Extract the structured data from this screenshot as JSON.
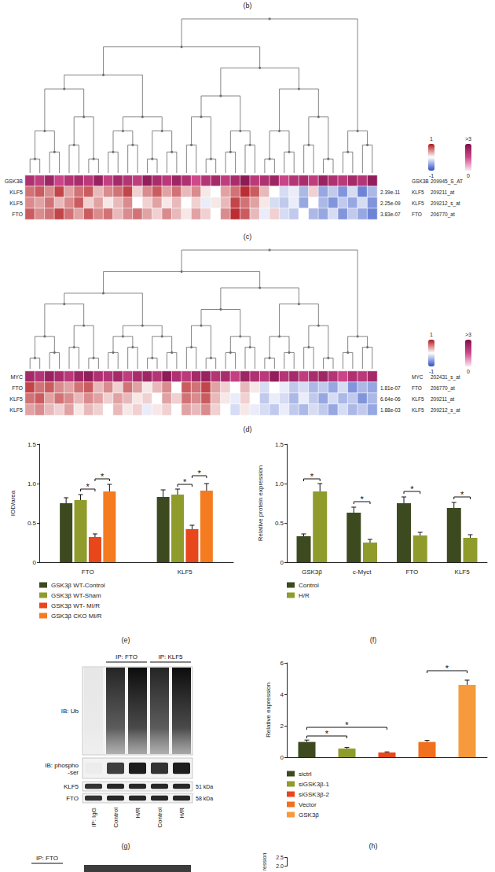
{
  "panel_labels": [
    "(b)",
    "(c)",
    "(d)",
    "(e)",
    "(f)",
    "(g)",
    "(h)"
  ],
  "chart_data": [
    {
      "type": "heatmap",
      "top_row": {
        "gene": "GSK3B",
        "probe": "209945_S_AT",
        "values": [
          2.1,
          1.8,
          2.4,
          1.6,
          2.0,
          2.2,
          1.9,
          2.5,
          1.7,
          2.3,
          2.0,
          1.8,
          2.6,
          2.2,
          1.9,
          2.4,
          2.1,
          1.5,
          2.0,
          2.3,
          1.8,
          2.2,
          2.7,
          1.9,
          2.1,
          2.4,
          1.6,
          2.0,
          2.2,
          1.8,
          2.5,
          2.1,
          1.9,
          2.3,
          2.0,
          2.6
        ]
      },
      "rows": [
        {
          "gene": "KLF5",
          "probe": "209211_at",
          "p_value": "2.39e-11",
          "values": [
            0.6,
            0.7,
            0.5,
            0.8,
            0.4,
            0.6,
            0.7,
            0.3,
            0.5,
            0.6,
            0.8,
            0.2,
            0.5,
            0.7,
            0.4,
            0.6,
            0.3,
            0.5,
            0.1,
            0.0,
            0.4,
            0.6,
            0.9,
            0.7,
            0.3,
            0.0,
            -0.2,
            -0.1,
            -0.4,
            0.2,
            -0.5,
            -0.3,
            -0.6,
            -0.2,
            -0.7,
            -0.4
          ]
        },
        {
          "gene": "KLF5",
          "probe": "209212_s_at",
          "p_value": "2.25e-09",
          "values": [
            0.5,
            0.4,
            0.6,
            0.3,
            0.5,
            0.7,
            0.2,
            0.4,
            0.1,
            0.3,
            0.5,
            0.0,
            0.2,
            0.4,
            0.1,
            0.3,
            0.0,
            0.2,
            -0.1,
            0.1,
            0.3,
            0.8,
            0.6,
            0.4,
            0.1,
            -0.2,
            -0.3,
            -0.1,
            -0.5,
            0.0,
            -0.4,
            -0.6,
            -0.3,
            -0.5,
            -0.2,
            -0.6
          ]
        },
        {
          "gene": "FTO",
          "probe": "206770_at",
          "p_value": "3.83e-07",
          "values": [
            0.7,
            0.5,
            0.6,
            0.8,
            0.6,
            0.4,
            0.7,
            0.5,
            0.6,
            0.3,
            0.5,
            0.6,
            0.4,
            0.2,
            0.5,
            0.3,
            0.1,
            0.4,
            0.2,
            0.0,
            0.5,
            0.9,
            0.7,
            0.3,
            -0.1,
            0.2,
            -0.2,
            -0.3,
            0.0,
            -0.4,
            -0.5,
            -0.2,
            -0.6,
            -0.3,
            -0.5,
            -0.7
          ]
        }
      ],
      "top_row_scale": {
        "range": [
          0,
          3
        ],
        "ticks": [
          0,
          {
            "value": 3,
            "label": ">3"
          }
        ]
      },
      "row_scale": {
        "range": [
          -1,
          1
        ],
        "ticks": [
          -1,
          1
        ]
      }
    },
    {
      "type": "heatmap",
      "top_row": {
        "gene": "MYC",
        "probe": "202431_s_at",
        "values": [
          2.3,
          2.0,
          2.5,
          2.2,
          1.9,
          2.4,
          2.6,
          2.1,
          2.0,
          2.3,
          1.8,
          2.2,
          2.4,
          2.0,
          2.7,
          2.1,
          1.9,
          2.3,
          2.5,
          2.0,
          2.2,
          1.7,
          2.4,
          2.1,
          1.9,
          2.6,
          2.0,
          2.3,
          1.8,
          2.2,
          2.4,
          2.0,
          1.6,
          2.1,
          1.9,
          2.3
        ]
      },
      "rows": [
        {
          "gene": "FTO",
          "probe": "206770_at",
          "p_value": "1.81e-07",
          "values": [
            0.8,
            0.6,
            0.7,
            0.5,
            0.4,
            0.6,
            0.7,
            0.3,
            0.5,
            0.2,
            0.6,
            0.4,
            0.1,
            0.3,
            0.5,
            0.0,
            0.7,
            0.6,
            0.8,
            0.4,
            0.2,
            0.0,
            0.3,
            0.1,
            -0.2,
            0.0,
            -0.1,
            -0.3,
            -0.2,
            -0.4,
            -0.3,
            -0.5,
            -0.2,
            -0.6,
            -0.4,
            -0.5
          ]
        },
        {
          "gene": "KLF5",
          "probe": "209211_at",
          "p_value": "6.64e-06",
          "values": [
            0.6,
            0.7,
            0.4,
            0.6,
            0.5,
            0.3,
            0.5,
            0.4,
            0.2,
            0.4,
            0.3,
            0.1,
            0.2,
            0.0,
            0.4,
            0.2,
            0.6,
            0.5,
            0.7,
            0.3,
            0.1,
            -0.1,
            0.2,
            0.0,
            -0.3,
            -0.1,
            -0.2,
            -0.4,
            -0.1,
            -0.3,
            -0.5,
            -0.2,
            -0.4,
            -0.3,
            -0.6,
            -0.4
          ]
        },
        {
          "gene": "KLF5",
          "probe": "209212_s_at",
          "p_value": "1.88e-03",
          "values": [
            0.4,
            0.5,
            0.3,
            0.2,
            0.4,
            0.1,
            0.3,
            0.2,
            0.0,
            0.3,
            0.1,
            0.2,
            -0.1,
            0.1,
            0.2,
            0.0,
            0.4,
            0.3,
            0.5,
            0.2,
            0.0,
            -0.2,
            0.1,
            -0.1,
            -0.2,
            -0.3,
            -0.1,
            -0.3,
            -0.4,
            -0.2,
            -0.3,
            -0.5,
            -0.2,
            -0.4,
            -0.3,
            -0.5
          ]
        }
      ],
      "top_row_scale": {
        "range": [
          0,
          3
        ],
        "ticks": [
          0,
          {
            "value": 3,
            "label": ">3"
          }
        ]
      },
      "row_scale": {
        "range": [
          -1,
          1
        ],
        "ticks": [
          -1,
          1
        ]
      }
    },
    {
      "type": "bar",
      "ylabel": "IOD/area",
      "ylim": [
        0,
        1.5
      ],
      "yticks": [
        0,
        0.5,
        {
          "value": 1,
          "label": "1.0"
        },
        1.5
      ],
      "grid": false,
      "legend": "bottom-left",
      "categories": [
        "FTO",
        "KLF5"
      ],
      "series": [
        {
          "name": "GSK3β WT-Control",
          "color": "#3d4a1f",
          "values": [
            0.75,
            0.83
          ],
          "errors": [
            0.07,
            0.09
          ]
        },
        {
          "name": "GSK3β WT-Sham",
          "color": "#8f9c2c",
          "values": [
            0.79,
            0.86
          ],
          "errors": [
            0.07,
            0.07
          ]
        },
        {
          "name": "GSK3β WT- MI/R",
          "color": "#e8461b",
          "values": [
            0.32,
            0.42
          ],
          "errors": [
            0.04,
            0.05
          ]
        },
        {
          "name": "GSK3β CKO MI/R",
          "color": "#f47b20",
          "values": [
            0.9,
            0.91
          ],
          "errors": [
            0.09,
            0.09
          ]
        }
      ],
      "significance": [
        {
          "from": {
            "category": 0,
            "series": 1
          },
          "to": {
            "category": 0,
            "series": 2
          },
          "y": 0.93,
          "label": "*"
        },
        {
          "from": {
            "category": 0,
            "series": 2
          },
          "to": {
            "category": 0,
            "series": 3
          },
          "y": 1.06,
          "label": "*"
        },
        {
          "from": {
            "category": 1,
            "series": 1
          },
          "to": {
            "category": 1,
            "series": 2
          },
          "y": 0.99,
          "label": "*"
        },
        {
          "from": {
            "category": 1,
            "series": 2
          },
          "to": {
            "category": 1,
            "series": 3
          },
          "y": 1.1,
          "label": "*"
        }
      ]
    },
    {
      "type": "bar",
      "ylabel": "Relative protein expression",
      "ylim": [
        0,
        1.5
      ],
      "yticks": [
        0,
        0.5,
        {
          "value": 1,
          "label": "1.0"
        },
        1.5
      ],
      "grid": false,
      "legend": "bottom-left",
      "categories": [
        "GSK3β",
        "c-Myct",
        "FTO",
        "KLF5"
      ],
      "series": [
        {
          "name": "Control",
          "color": "#3d4a1f",
          "values": [
            0.33,
            0.63,
            0.75,
            0.69
          ],
          "errors": [
            0.03,
            0.07,
            0.08,
            0.07
          ]
        },
        {
          "name": "H/R",
          "color": "#8f9c2c",
          "values": [
            0.9,
            0.25,
            0.34,
            0.31
          ],
          "errors": [
            0.1,
            0.04,
            0.04,
            0.04
          ]
        }
      ],
      "significance": [
        {
          "from": {
            "category": 0,
            "series": 0
          },
          "to": {
            "category": 0,
            "series": 1
          },
          "y": 1.06,
          "label": "*"
        },
        {
          "from": {
            "category": 1,
            "series": 0
          },
          "to": {
            "category": 1,
            "series": 1
          },
          "y": 0.77,
          "label": "*"
        },
        {
          "from": {
            "category": 2,
            "series": 0
          },
          "to": {
            "category": 2,
            "series": 1
          },
          "y": 0.9,
          "label": "*"
        },
        {
          "from": {
            "category": 3,
            "series": 0
          },
          "to": {
            "category": 3,
            "series": 1
          },
          "y": 0.83,
          "label": "*"
        }
      ]
    },
    {
      "type": "bar",
      "ylabel": "Relative expression",
      "ylim": [
        0,
        6
      ],
      "yticks": [
        0,
        2,
        4,
        6
      ],
      "grid": false,
      "legend": "bottom-left",
      "tick_labels": "y",
      "categories": [
        null,
        null,
        null,
        null,
        null
      ],
      "series": [
        {
          "name": "sictrl",
          "color": "#3d4a1f",
          "values": [
            0.97,
            null,
            null,
            null,
            null
          ],
          "errors": [
            0.12,
            null,
            null,
            null,
            null
          ]
        },
        {
          "name": "siGSK3β-1",
          "color": "#8f9c2c",
          "values": [
            null,
            0.55,
            null,
            null,
            null
          ],
          "errors": [
            null,
            0.07,
            null,
            null,
            null
          ]
        },
        {
          "name": "siGSK3β-2",
          "color": "#e8461b",
          "values": [
            null,
            null,
            0.3,
            null,
            null
          ],
          "errors": [
            null,
            null,
            0.04,
            null,
            null
          ]
        },
        {
          "name": "Vector",
          "color": "#f0701e",
          "values": [
            null,
            null,
            null,
            0.97,
            null
          ],
          "errors": [
            null,
            null,
            null,
            0.1,
            null
          ]
        },
        {
          "name": "GSK3β",
          "color": "#f79a3c",
          "values": [
            null,
            null,
            null,
            null,
            4.6
          ],
          "errors": [
            null,
            null,
            null,
            null,
            0.3
          ]
        }
      ],
      "significance": [
        {
          "from": {
            "category": 0,
            "series": 0
          },
          "to": {
            "category": 1,
            "series": 1
          },
          "y": 1.35,
          "label": "*"
        },
        {
          "from": {
            "category": 0,
            "series": 0
          },
          "to": {
            "category": 2,
            "series": 2
          },
          "y": 1.9,
          "label": "*"
        },
        {
          "from": {
            "category": 3,
            "series": 3
          },
          "to": {
            "category": 4,
            "series": 4
          },
          "y": 5.5,
          "label": "*"
        }
      ]
    },
    {
      "type": "bar",
      "ylabel": "ression",
      "ylim": [
        2,
        2.5
      ],
      "yticks": [
        {
          "value": 2,
          "label": "2.0"
        },
        2.5
      ],
      "grid": false,
      "tick_labels": "y",
      "categories": [],
      "series": []
    }
  ],
  "blots": [
    {
      "ip_labels": [
        {
          "text": "IP: FTO",
          "lanes": [
            1,
            2
          ]
        },
        {
          "text": "IP: KLF5",
          "lanes": [
            3,
            4
          ]
        }
      ],
      "rows": [
        {
          "label": "IB: Ub",
          "intensity": [
            0.05,
            0.85,
            0.95,
            0.85,
            0.95
          ]
        },
        {
          "label": "IB: phospho -ser",
          "intensity": [
            0.03,
            0.8,
            0.95,
            0.85,
            0.95
          ]
        },
        {
          "label": "KLF5",
          "size": "51 kDa",
          "intensity": [
            0.85,
            0.9,
            0.9,
            0.9,
            0.9
          ]
        },
        {
          "label": "FTO",
          "size": "58 kDa",
          "intensity": [
            0.85,
            0.9,
            0.9,
            0.9,
            0.9
          ]
        }
      ],
      "lanes": [
        "IP: IgG",
        "Control",
        "H/R",
        "Control",
        "H/R"
      ]
    }
  ],
  "blot_fragment": {
    "ip_label": "IP: FTO"
  }
}
